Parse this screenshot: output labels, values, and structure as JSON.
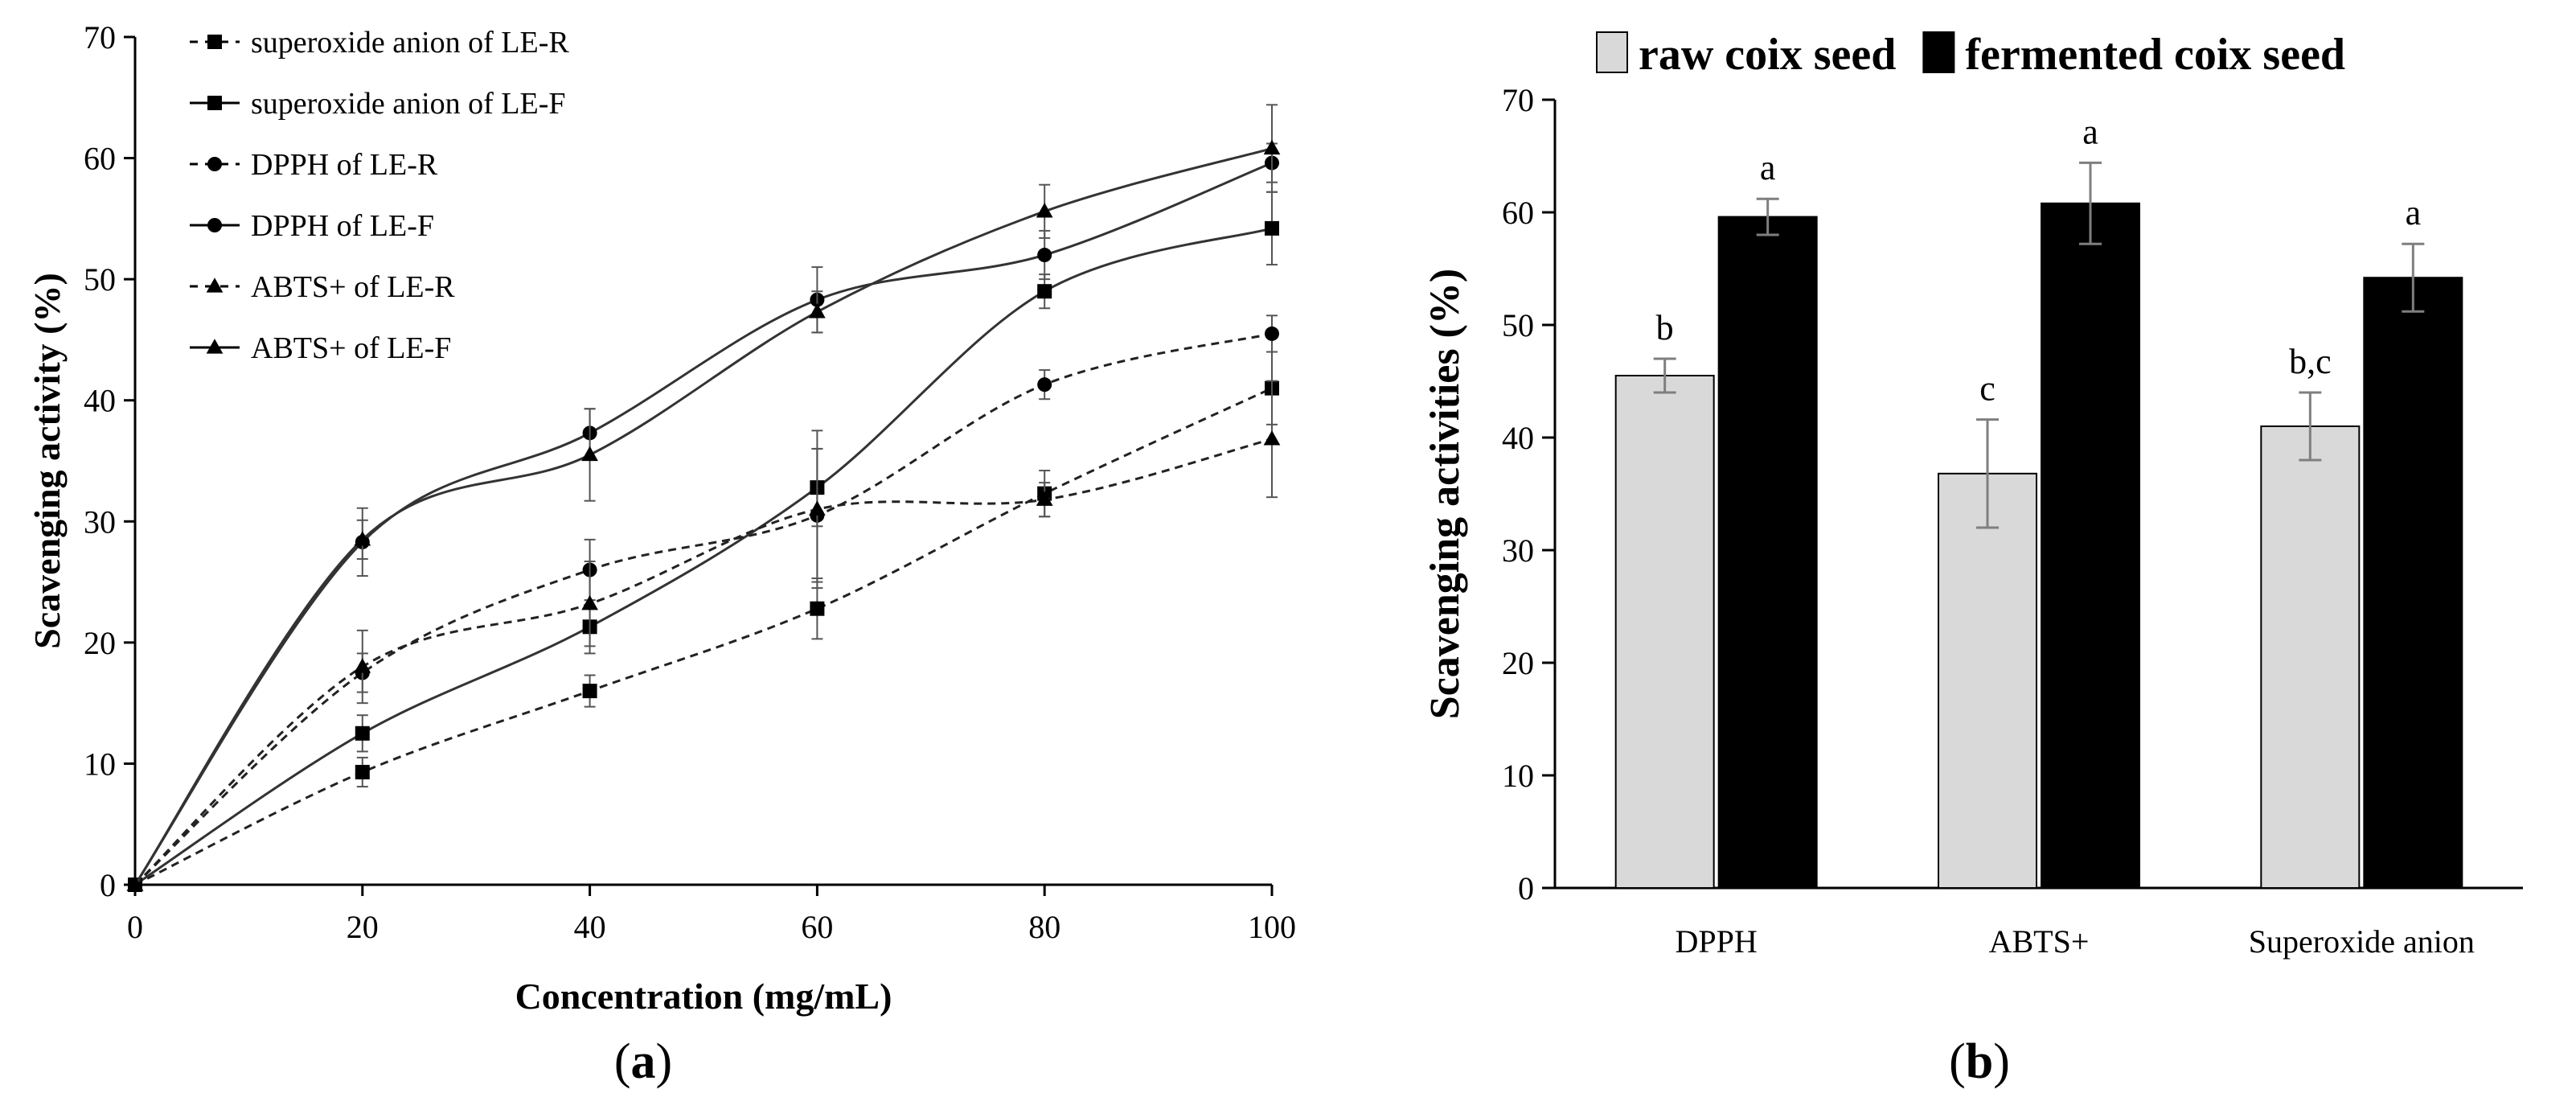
{
  "panels": [
    {
      "label": "(a)",
      "label_letter": "a"
    },
    {
      "label": "(b)",
      "label_letter": "b"
    }
  ],
  "chart_data": [
    {
      "type": "line",
      "panel": "(a)",
      "xlabel": "Concentration (mg/mL)",
      "ylabel": "Scavenging activity (%)",
      "xlim": [
        0,
        100
      ],
      "ylim": [
        0,
        70
      ],
      "xticks": [
        0,
        20,
        40,
        60,
        80,
        100
      ],
      "yticks": [
        0,
        10,
        20,
        30,
        40,
        50,
        60,
        70
      ],
      "legend_position": "top-left",
      "grid": false,
      "x": [
        0,
        20,
        40,
        60,
        80,
        100
      ],
      "series": [
        {
          "name": "superoxide anion of LE-R",
          "marker": "square",
          "dash": "dashed",
          "values": [
            0,
            9.3,
            16.0,
            22.8,
            32.3,
            41.0
          ],
          "errors": [
            0,
            1.2,
            1.3,
            2.5,
            1.9,
            3.0
          ]
        },
        {
          "name": "superoxide anion of LE-F",
          "marker": "square",
          "dash": "solid",
          "values": [
            0,
            12.5,
            21.3,
            32.8,
            49.0,
            54.2
          ],
          "errors": [
            0,
            1.5,
            2.2,
            3.2,
            1.4,
            3.0
          ]
        },
        {
          "name": "DPPH of LE-R",
          "marker": "circle",
          "dash": "dashed",
          "values": [
            0,
            17.5,
            26.0,
            30.5,
            41.3,
            45.5
          ],
          "errors": [
            0,
            1.6,
            2.5,
            5.5,
            1.2,
            1.5
          ]
        },
        {
          "name": "DPPH of LE-F",
          "marker": "circle",
          "dash": "solid",
          "values": [
            0,
            28.3,
            37.3,
            48.3,
            52.0,
            59.6
          ],
          "errors": [
            0,
            2.8,
            2.0,
            2.7,
            2.0,
            1.6
          ]
        },
        {
          "name": "ABTS+ of LE-R",
          "marker": "triangle",
          "dash": "dashed",
          "values": [
            0,
            18.0,
            23.2,
            31.0,
            31.8,
            36.8
          ],
          "errors": [
            0,
            3.0,
            3.5,
            6.5,
            1.4,
            4.8
          ]
        },
        {
          "name": "ABTS+ of LE-F",
          "marker": "triangle",
          "dash": "solid",
          "values": [
            0,
            28.5,
            35.5,
            47.3,
            55.6,
            60.8
          ],
          "errors": [
            0,
            1.6,
            3.8,
            1.7,
            2.2,
            3.6
          ]
        }
      ]
    },
    {
      "type": "bar",
      "panel": "(b)",
      "ylabel": "Scavenging activities (%)",
      "xlabel": "",
      "ylim": [
        0,
        70
      ],
      "yticks": [
        0,
        10,
        20,
        30,
        40,
        50,
        60,
        70
      ],
      "legend_position": "top",
      "grid": false,
      "categories": [
        "DPPH",
        "ABTS+",
        "Superoxide anion"
      ],
      "series": [
        {
          "name": "raw coix seed",
          "color": "#d9d9d9",
          "values": [
            45.5,
            36.8,
            41.0
          ],
          "errors": [
            1.5,
            4.8,
            3.0
          ],
          "letters": [
            "b",
            "c",
            "b,c"
          ]
        },
        {
          "name": "fermented coix seed",
          "color": "#000000",
          "values": [
            59.6,
            60.8,
            54.2
          ],
          "errors": [
            1.6,
            3.6,
            3.0
          ],
          "letters": [
            "a",
            "a",
            "a"
          ]
        }
      ]
    }
  ]
}
